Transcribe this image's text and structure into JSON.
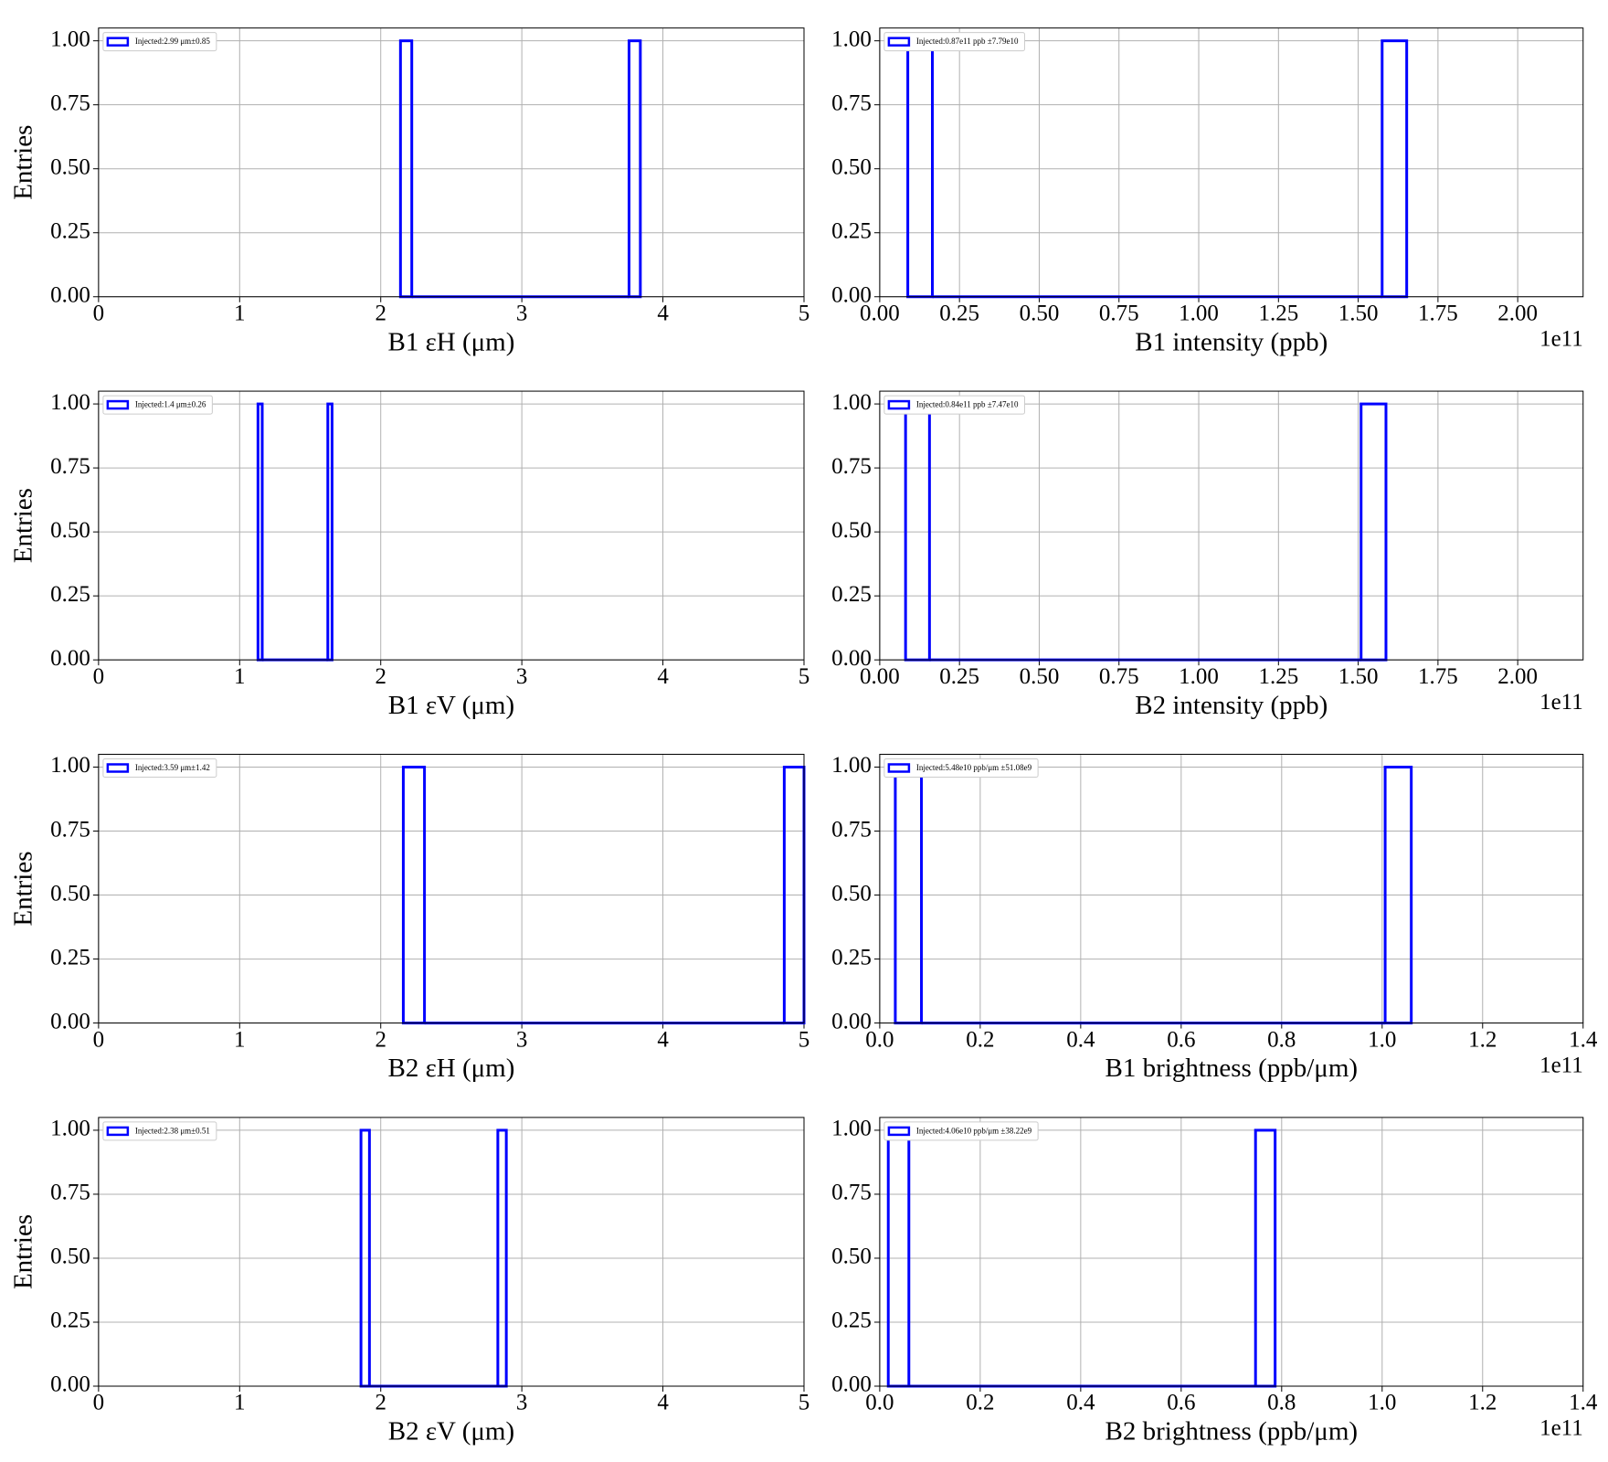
{
  "chart_data": [
    {
      "type": "histogram",
      "xlabel": "B1 εH (μm)",
      "ylabel": "Entries",
      "legend": "Injected:2.99 μm±0.85",
      "color": "#0000ff",
      "bins": [
        2.14,
        2.22,
        3.76,
        3.84
      ],
      "counts": [
        1,
        0,
        1
      ],
      "xlim": [
        0,
        5
      ],
      "xticks": [
        0,
        1,
        2,
        3,
        4,
        5
      ],
      "ylim": [
        0,
        1.05
      ],
      "yticks": [
        {
          "value": 0,
          "label": "0.00"
        },
        {
          "value": 0.25,
          "label": "0.25"
        },
        {
          "value": 0.5,
          "label": "0.50"
        },
        {
          "value": 0.75,
          "label": "0.75"
        },
        {
          "value": 1,
          "label": "1.00"
        }
      ],
      "grid": true
    },
    {
      "type": "histogram",
      "xlabel": "B1 intensity (ppb)",
      "legend": "Injected:0.87e11 ppb ±7.79e10",
      "x_offset_label": "1e11",
      "color": "#0000ff",
      "bins": [
        0.088,
        0.165,
        1.575,
        1.652
      ],
      "counts": [
        1,
        0,
        1
      ],
      "xlim": [
        0,
        2.205
      ],
      "xticks": [
        {
          "value": 0,
          "label": "0.00"
        },
        {
          "value": 0.25,
          "label": "0.25"
        },
        {
          "value": 0.5,
          "label": "0.50"
        },
        {
          "value": 0.75,
          "label": "0.75"
        },
        {
          "value": 1,
          "label": "1.00"
        },
        {
          "value": 1.25,
          "label": "1.25"
        },
        {
          "value": 1.5,
          "label": "1.50"
        },
        {
          "value": 1.75,
          "label": "1.75"
        },
        {
          "value": 2,
          "label": "2.00"
        }
      ],
      "ylim": [
        0,
        1.05
      ],
      "yticks": [
        {
          "value": 0,
          "label": "0.00"
        },
        {
          "value": 0.25,
          "label": "0.25"
        },
        {
          "value": 0.5,
          "label": "0.50"
        },
        {
          "value": 0.75,
          "label": "0.75"
        },
        {
          "value": 1,
          "label": "1.00"
        }
      ],
      "grid": true
    },
    {
      "type": "histogram",
      "xlabel": "B1 εV (μm)",
      "ylabel": "Entries",
      "legend": "Injected:1.4 μm±0.26",
      "color": "#0000ff",
      "bins": [
        1.13,
        1.16,
        1.625,
        1.655
      ],
      "counts": [
        1,
        0,
        1
      ],
      "xlim": [
        0,
        5
      ],
      "xticks": [
        0,
        1,
        2,
        3,
        4,
        5
      ],
      "ylim": [
        0,
        1.05
      ],
      "yticks": [
        {
          "value": 0,
          "label": "0.00"
        },
        {
          "value": 0.25,
          "label": "0.25"
        },
        {
          "value": 0.5,
          "label": "0.50"
        },
        {
          "value": 0.75,
          "label": "0.75"
        },
        {
          "value": 1,
          "label": "1.00"
        }
      ],
      "grid": true
    },
    {
      "type": "histogram",
      "xlabel": "B2 intensity (ppb)",
      "legend": "Injected:0.84e11 ppb ±7.47e10",
      "x_offset_label": "1e11",
      "color": "#0000ff",
      "bins": [
        0.081,
        0.156,
        1.509,
        1.587
      ],
      "counts": [
        1,
        0,
        1
      ],
      "xlim": [
        0,
        2.205
      ],
      "xticks": [
        {
          "value": 0,
          "label": "0.00"
        },
        {
          "value": 0.25,
          "label": "0.25"
        },
        {
          "value": 0.5,
          "label": "0.50"
        },
        {
          "value": 0.75,
          "label": "0.75"
        },
        {
          "value": 1,
          "label": "1.00"
        },
        {
          "value": 1.25,
          "label": "1.25"
        },
        {
          "value": 1.5,
          "label": "1.50"
        },
        {
          "value": 1.75,
          "label": "1.75"
        },
        {
          "value": 2,
          "label": "2.00"
        }
      ],
      "ylim": [
        0,
        1.05
      ],
      "yticks": [
        {
          "value": 0,
          "label": "0.00"
        },
        {
          "value": 0.25,
          "label": "0.25"
        },
        {
          "value": 0.5,
          "label": "0.50"
        },
        {
          "value": 0.75,
          "label": "0.75"
        },
        {
          "value": 1,
          "label": "1.00"
        }
      ],
      "grid": true
    },
    {
      "type": "histogram",
      "xlabel": "B2 εH (μm)",
      "ylabel": "Entries",
      "legend": "Injected:3.59 μm±1.42",
      "color": "#0000ff",
      "bins": [
        2.16,
        2.31,
        4.86,
        5.0
      ],
      "counts": [
        1,
        0,
        1
      ],
      "xlim": [
        0,
        5
      ],
      "xticks": [
        0,
        1,
        2,
        3,
        4,
        5
      ],
      "ylim": [
        0,
        1.05
      ],
      "yticks": [
        {
          "value": 0,
          "label": "0.00"
        },
        {
          "value": 0.25,
          "label": "0.25"
        },
        {
          "value": 0.5,
          "label": "0.50"
        },
        {
          "value": 0.75,
          "label": "0.75"
        },
        {
          "value": 1,
          "label": "1.00"
        }
      ],
      "grid": true
    },
    {
      "type": "histogram",
      "xlabel": "B1 brightness (ppb/μm)",
      "legend": "Injected:5.48e10 ppb/μm ±51.08e9",
      "x_offset_label": "1e11",
      "color": "#0000ff",
      "bins": [
        0.031,
        0.083,
        1.006,
        1.058
      ],
      "counts": [
        1,
        0,
        1
      ],
      "xlim": [
        0,
        1.4
      ],
      "xticks": [
        {
          "value": 0,
          "label": "0.0"
        },
        0.2,
        0.4,
        0.6,
        0.8,
        {
          "value": 1,
          "label": "1.0"
        },
        1.2,
        1.4
      ],
      "ylim": [
        0,
        1.05
      ],
      "yticks": [
        {
          "value": 0,
          "label": "0.00"
        },
        {
          "value": 0.25,
          "label": "0.25"
        },
        {
          "value": 0.5,
          "label": "0.50"
        },
        {
          "value": 0.75,
          "label": "0.75"
        },
        {
          "value": 1,
          "label": "1.00"
        }
      ],
      "grid": true
    },
    {
      "type": "histogram",
      "xlabel": "B2 εV (μm)",
      "ylabel": "Entries",
      "legend": "Injected:2.38 μm±0.51",
      "color": "#0000ff",
      "bins": [
        1.86,
        1.92,
        2.83,
        2.89
      ],
      "counts": [
        1,
        0,
        1
      ],
      "xlim": [
        0,
        5
      ],
      "xticks": [
        0,
        1,
        2,
        3,
        4,
        5
      ],
      "ylim": [
        0,
        1.05
      ],
      "yticks": [
        {
          "value": 0,
          "label": "0.00"
        },
        {
          "value": 0.25,
          "label": "0.25"
        },
        {
          "value": 0.5,
          "label": "0.50"
        },
        {
          "value": 0.75,
          "label": "0.75"
        },
        {
          "value": 1,
          "label": "1.00"
        }
      ],
      "grid": true
    },
    {
      "type": "histogram",
      "xlabel": "B2 brightness (ppb/μm)",
      "legend": "Injected:4.06e10 ppb/μm ±38.22e9",
      "x_offset_label": "1e11",
      "color": "#0000ff",
      "bins": [
        0.017,
        0.058,
        0.748,
        0.787
      ],
      "counts": [
        1,
        0,
        1
      ],
      "xlim": [
        0,
        1.4
      ],
      "xticks": [
        {
          "value": 0,
          "label": "0.0"
        },
        0.2,
        0.4,
        0.6,
        0.8,
        {
          "value": 1,
          "label": "1.0"
        },
        1.2,
        1.4
      ],
      "ylim": [
        0,
        1.05
      ],
      "yticks": [
        {
          "value": 0,
          "label": "0.00"
        },
        {
          "value": 0.25,
          "label": "0.25"
        },
        {
          "value": 0.5,
          "label": "0.50"
        },
        {
          "value": 0.75,
          "label": "0.75"
        },
        {
          "value": 1,
          "label": "1.00"
        }
      ],
      "grid": true
    }
  ]
}
